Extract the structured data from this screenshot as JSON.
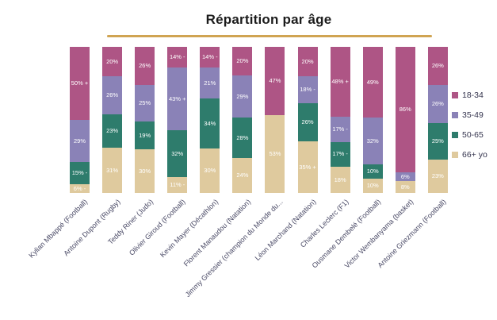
{
  "title": "Répartition par âge",
  "accent_underline_color": "#d0a452",
  "chart_data": {
    "type": "bar",
    "stacked": true,
    "units": "percent",
    "title": "Répartition par âge",
    "grid": false,
    "legend_position": "right",
    "ylim": [
      0,
      100
    ],
    "categories": [
      "Kylian Mbappé (Football)",
      "Antoine Dupont (Rugby)",
      "Teddy Riner (Judo)",
      "Olivier Giroud (Football)",
      "Kevin Mayer (Décathlon)",
      "Florent Manaudou (Natation)",
      "Jimmy Gressier (champion du Monde du...",
      "Léon Marchand (Natation)",
      "Charles Leclerc (F1)",
      "Ousmane Dembelé (Football)",
      "Victor Wembanyama (basket)",
      "Antoine Griezmann (Football)"
    ],
    "series": [
      {
        "name": "18-34",
        "color": "#ae5585",
        "values": [
          50,
          20,
          26,
          14,
          14,
          20,
          47,
          20,
          48,
          49,
          86,
          26
        ],
        "labels": [
          "50% +",
          "20%",
          "26%",
          "14% -",
          "14% -",
          "20%",
          "47%",
          "20%",
          "48% +",
          "49%",
          "86%",
          "26%"
        ]
      },
      {
        "name": "35-49",
        "color": "#8a82b7",
        "values": [
          29,
          26,
          25,
          43,
          21,
          29,
          0,
          18,
          17,
          32,
          6,
          26
        ],
        "labels": [
          "29%",
          "26%",
          "25%",
          "43% +",
          "21%",
          "29%",
          "",
          "18% -",
          "17% -",
          "32%",
          "6%",
          "26%"
        ]
      },
      {
        "name": "50-65",
        "color": "#2e7c6c",
        "values": [
          15,
          23,
          19,
          32,
          34,
          28,
          0,
          26,
          17,
          10,
          0,
          25
        ],
        "labels": [
          "15% -",
          "23%",
          "19%",
          "32%",
          "34%",
          "28%",
          "",
          "26%",
          "17% -",
          "10%",
          "",
          "25%"
        ]
      },
      {
        "name": "66+ yo",
        "color": "#dfca9e",
        "values": [
          6,
          31,
          30,
          11,
          30,
          24,
          53,
          35,
          18,
          10,
          8,
          23
        ],
        "labels": [
          "6% -",
          "31%",
          "30%",
          "11% -",
          "30%",
          "24%",
          "53%",
          "35% +",
          "18%",
          "10%",
          "8%",
          "23%"
        ]
      }
    ]
  }
}
